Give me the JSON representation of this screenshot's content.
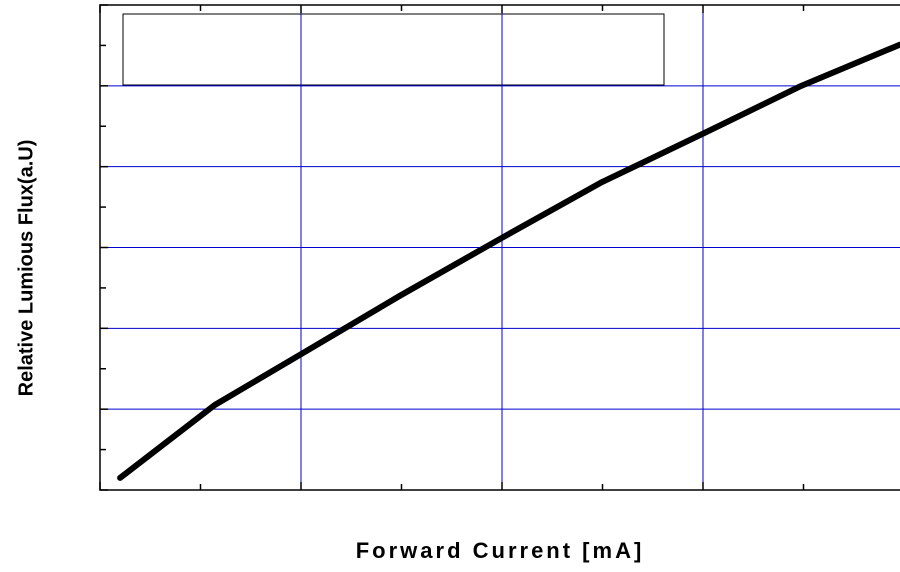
{
  "chart_data": {
    "type": "line",
    "xlabel": "Forward Current [mA]",
    "ylabel": "Relative Lumious Flux(a.U)",
    "x": [
      0.1,
      0.57,
      1.0,
      1.49,
      2.0,
      2.49,
      3.01,
      3.48,
      3.98
    ],
    "values": [
      0.15,
      1.05,
      1.68,
      2.4,
      3.12,
      3.8,
      4.42,
      4.99,
      5.51
    ],
    "color": "#000000",
    "xlim": [
      0,
      4
    ],
    "ylim": [
      0,
      6
    ],
    "xticks": [
      0,
      1,
      2,
      3,
      4
    ],
    "yticks": [
      0,
      1,
      2,
      3,
      4,
      5,
      6
    ],
    "grid": true,
    "grid_color": "#0000cc"
  }
}
